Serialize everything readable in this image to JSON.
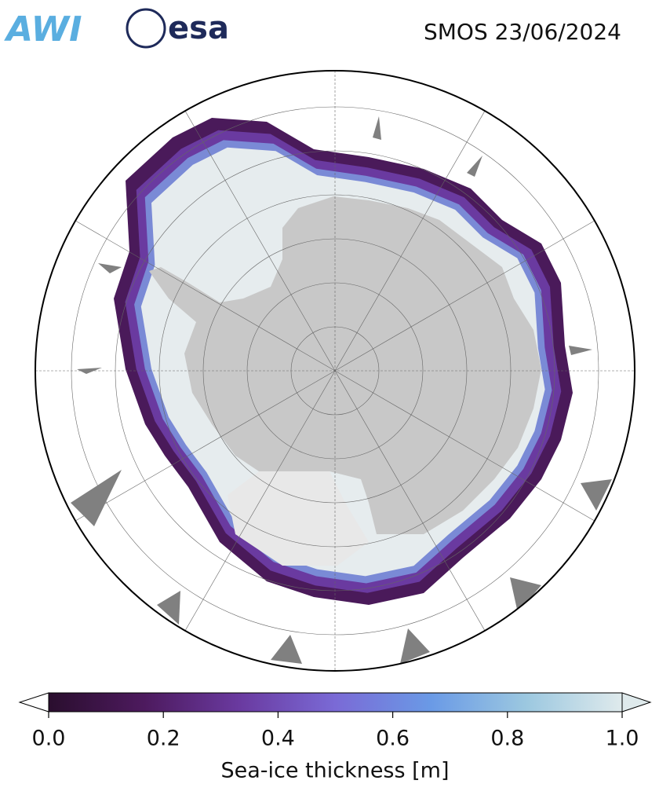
{
  "header": {
    "logo_left": "AWI",
    "logo_right": "esa",
    "title": "SMOS 23/06/2024"
  },
  "colorbar": {
    "label": "Sea-ice thickness [m]",
    "lim": [
      0,
      1
    ],
    "ticks": [
      {
        "value": 0,
        "label": "0.0"
      },
      {
        "value": 0.2,
        "label": "0.2"
      },
      {
        "value": 0.4,
        "label": "0.4"
      },
      {
        "value": 0.6,
        "label": "0.6"
      },
      {
        "value": 0.8,
        "label": "0.8"
      },
      {
        "value": 1,
        "label": "1.0"
      }
    ],
    "colors": [
      "#2a0e2e",
      "#4d1a5e",
      "#6a3aa0",
      "#7a6ad6",
      "#6a9ae6",
      "#9cc8e0",
      "#dfeaec"
    ]
  }
}
